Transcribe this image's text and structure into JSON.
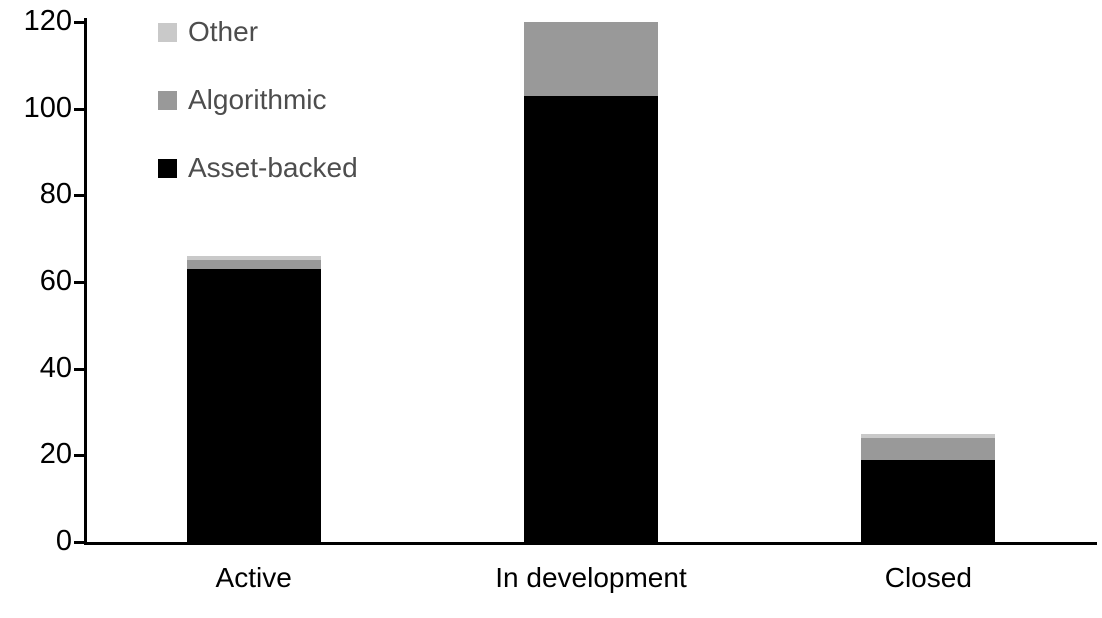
{
  "chart_data": {
    "type": "bar",
    "stacked": true,
    "title": "",
    "xlabel": "",
    "ylabel": "",
    "categories": [
      "Active",
      "In development",
      "Closed"
    ],
    "series": [
      {
        "name": "Asset-backed",
        "color": "#000000",
        "values": [
          63,
          103,
          19
        ]
      },
      {
        "name": "Algorithmic",
        "color": "#999999",
        "values": [
          2,
          17,
          5
        ]
      },
      {
        "name": "Other",
        "color": "#c9c9c9",
        "values": [
          1,
          0,
          1
        ]
      }
    ],
    "totals": [
      66,
      120,
      25
    ],
    "ylim": [
      0,
      120
    ],
    "yticks": [
      0,
      20,
      40,
      60,
      80,
      100,
      120
    ],
    "grid": false,
    "legend": {
      "position": "top-left",
      "order_top_to_bottom": [
        "Other",
        "Algorithmic",
        "Asset-backed"
      ]
    }
  },
  "colors": {
    "background": "#ffffff",
    "axis": "#000000",
    "tick_label_text": "#000000",
    "category_label_text": "#000000",
    "legend_text": "#4d4d4d"
  }
}
